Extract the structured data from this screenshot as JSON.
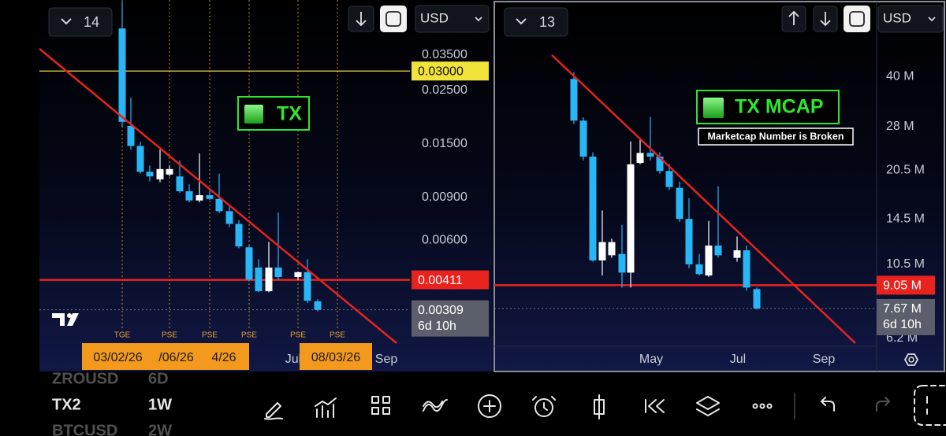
{
  "panels": [
    {
      "count": "14",
      "currency": "USD"
    },
    {
      "count": "13",
      "currency": "USD"
    }
  ],
  "chart_data": [
    {
      "type": "candlestick",
      "title": "TX",
      "scale": "log",
      "ylim": [
        0.00225,
        0.059
      ],
      "yticks": [
        {
          "value": 0.035,
          "label": "0.03500"
        },
        {
          "value": 0.025,
          "label": "0.02500"
        },
        {
          "value": 0.015,
          "label": "0.01500"
        },
        {
          "value": 0.009,
          "label": "0.00900"
        },
        {
          "value": 0.006,
          "label": "0.00600"
        }
      ],
      "open": [
        0.045,
        0.0178,
        0.0147,
        0.0115,
        0.0107,
        0.0112,
        0.011,
        0.00955,
        0.00875,
        0.0092,
        0.00888,
        0.0079,
        0.007,
        0.0056,
        0.00462,
        0.00369,
        0.00462,
        0.00422,
        0.00442,
        0.00335
      ],
      "high": [
        0.058,
        0.0233,
        0.0153,
        0.0122,
        0.0142,
        0.0122,
        0.0128,
        0.0102,
        0.0137,
        0.0096,
        0.0113,
        0.0084,
        0.00724,
        0.0057,
        0.005,
        0.0059,
        0.00781,
        0.00445,
        0.005,
        0.00342
      ],
      "low": [
        0.0175,
        0.0142,
        0.0113,
        0.0105,
        0.0104,
        0.011,
        0.0094,
        0.0086,
        0.0086,
        0.0088,
        0.00775,
        0.0068,
        0.00555,
        0.00405,
        0.00365,
        0.00365,
        0.0041,
        0.0041,
        0.0033,
        0.00304
      ],
      "close": [
        0.0185,
        0.0147,
        0.0115,
        0.011,
        0.0118,
        0.0118,
        0.00955,
        0.00875,
        0.0092,
        0.00888,
        0.0079,
        0.007,
        0.00565,
        0.00412,
        0.00369,
        0.00462,
        0.00422,
        0.00442,
        0.00337,
        0.00309
      ],
      "up_color": "#ffffff",
      "down_color": "#29b6f6",
      "levels": [
        {
          "value": 0.03,
          "label": "0.03000",
          "color": "#f2e33a"
        },
        {
          "value": 0.00411,
          "label": "0.00411",
          "color": "#e8231e"
        }
      ],
      "last_price": 0.00309,
      "countdown": "6d 10h",
      "events": [
        "TGE",
        "PSE",
        "PSE",
        "PSE",
        "PSE",
        "PSE"
      ],
      "date_flags": [
        "03/02/26",
        "/06/26",
        "4/26",
        "08/03/26"
      ],
      "xlabels": [
        "Jul",
        "Sep"
      ]
    },
    {
      "type": "candlestick",
      "title": "TX MCAP",
      "subtitle": "Marketcap Number is Broken",
      "scale": "log",
      "ylim": [
        5.86,
        68.9
      ],
      "yticks": [
        {
          "value": 40,
          "label": "40 M"
        },
        {
          "value": 28,
          "label": "28 M"
        },
        {
          "value": 20.5,
          "label": "20.5 M"
        },
        {
          "value": 14.5,
          "label": "14.5 M"
        },
        {
          "value": 10.5,
          "label": "10.5 M"
        },
        {
          "value": 6.2,
          "label": "6.2 M"
        }
      ],
      "open": [
        39.3,
        29.2,
        22.6,
        10.8,
        11.2,
        11.3,
        9.9,
        21.6,
        23.2,
        22.6,
        20.4,
        18.1,
        14.5,
        10.5,
        9.7,
        12.0,
        11.0,
        11.6,
        8.8
      ],
      "high": [
        41.2,
        29.9,
        23.3,
        15.4,
        12.6,
        13.9,
        25.2,
        25.8,
        30.0,
        23.3,
        21.4,
        18.9,
        16.8,
        11.3,
        14.3,
        18.3,
        12.8,
        12.0,
        8.9
      ],
      "low": [
        28.5,
        22.0,
        10.7,
        9.7,
        11.0,
        8.9,
        8.9,
        21.4,
        22.0,
        20.0,
        17.8,
        14.2,
        10.2,
        9.7,
        9.6,
        11.0,
        10.7,
        8.7,
        7.6
      ],
      "close": [
        29.2,
        22.6,
        10.8,
        12.3,
        12.3,
        9.9,
        21.4,
        23.2,
        22.6,
        20.4,
        18.2,
        14.5,
        10.5,
        9.8,
        12.0,
        11.2,
        11.6,
        8.9,
        7.67
      ],
      "up_color": "#ffffff",
      "down_color": "#29b6f6",
      "levels": [
        {
          "value": 9.05,
          "label": "9.05 M",
          "color": "#e8231e"
        }
      ],
      "last_price": {
        "value": 7.67,
        "label": "7.67 M"
      },
      "countdown": "6d 10h",
      "xlabels": [
        "May",
        "Jul",
        "Sep"
      ]
    }
  ],
  "watchlist": [
    {
      "symbol": "ZROUSD",
      "interval": "6D"
    },
    {
      "symbol": "TX2",
      "interval": "1W"
    },
    {
      "symbol": "BTCUSD",
      "interval": "2W"
    }
  ]
}
